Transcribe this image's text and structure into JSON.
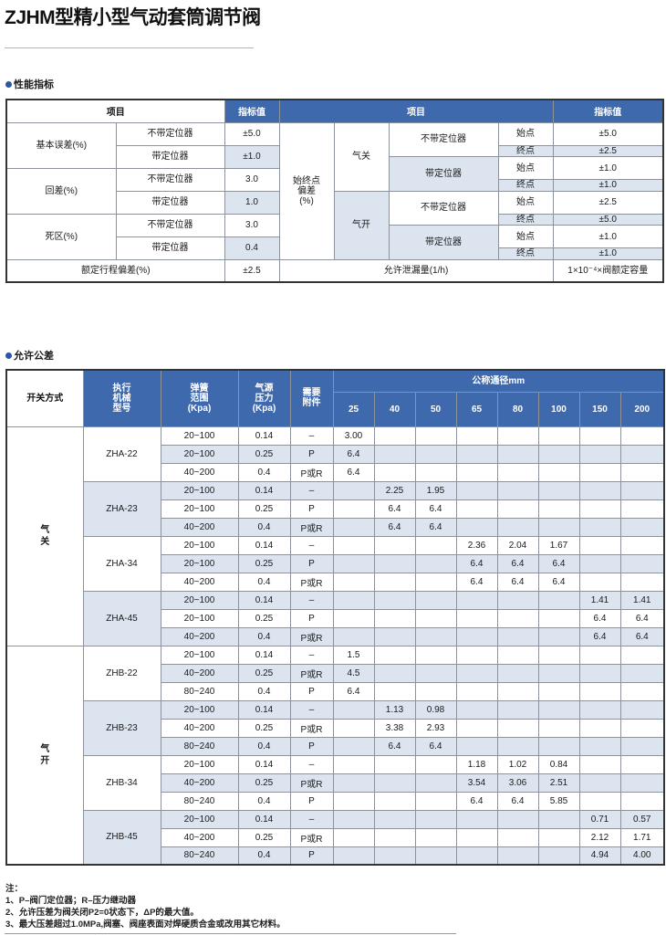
{
  "title": "ZJHM型精小型气动套筒调节阀",
  "section1": {
    "heading": "性能指标",
    "header": {
      "item_left": "项目",
      "value_left": "指标值",
      "item_right": "项目",
      "value_right": "指标值"
    },
    "left_rows": [
      {
        "label": "基本误差(%)",
        "sub": [
          {
            "name": "不带定位器",
            "value": "±5.0"
          },
          {
            "name": "带定位器",
            "value": "±1.0"
          }
        ]
      },
      {
        "label": "回差(%)",
        "sub": [
          {
            "name": "不带定位器",
            "value": "3.0"
          },
          {
            "name": "带定位器",
            "value": "1.0"
          }
        ]
      },
      {
        "label": "死区(%)",
        "sub": [
          {
            "name": "不带定位器",
            "value": "3.0"
          },
          {
            "name": "带定位器",
            "value": "0.4"
          }
        ]
      }
    ],
    "right_label": "始终点\n偏差\n(%)",
    "right_groups": [
      {
        "mode": "气关",
        "sub": [
          {
            "name": "不带定位器",
            "start_label": "始点",
            "start": "±5.0",
            "end_label": "终点",
            "end": "±2.5"
          },
          {
            "name": "带定位器",
            "start_label": "始点",
            "start": "±1.0",
            "end_label": "终点",
            "end": "±1.0"
          }
        ]
      },
      {
        "mode": "气开",
        "sub": [
          {
            "name": "不带定位器",
            "start_label": "始点",
            "start": "±2.5",
            "end_label": "终点",
            "end": "±5.0"
          },
          {
            "name": "带定位器",
            "start_label": "始点",
            "start": "±1.0",
            "end_label": "终点",
            "end": "±1.0"
          }
        ]
      }
    ],
    "footer": {
      "left_label": "额定行程偏差(%)",
      "left_value": "±2.5",
      "right_label": "允许泄漏量(1/h)",
      "right_value": "1×10⁻⁴×阀额定容量"
    }
  },
  "section2": {
    "heading": "允许公差",
    "header": {
      "mode": "开关方式",
      "model": "执行\n机械\n型号",
      "spring": "弹簧\n范围\n(Kpa)",
      "air": "气源\n压力\n(Kpa)",
      "accessory": "需要\n附件",
      "dn_title": "公称通径mm",
      "dn": [
        "25",
        "40",
        "50",
        "65",
        "80",
        "100",
        "150",
        "200"
      ]
    },
    "groups": [
      {
        "mode": "气\n关",
        "models": [
          {
            "model": "ZHA-22",
            "rows": [
              [
                "20~100",
                "0.14",
                "–",
                "3.00",
                "",
                "",
                "",
                "",
                "",
                "",
                ""
              ],
              [
                "20~100",
                "0.25",
                "P",
                "6.4",
                "",
                "",
                "",
                "",
                "",
                "",
                ""
              ],
              [
                "40~200",
                "0.4",
                "P或R",
                "6.4",
                "",
                "",
                "",
                "",
                "",
                "",
                ""
              ]
            ]
          },
          {
            "model": "ZHA-23",
            "rows": [
              [
                "20~100",
                "0.14",
                "–",
                "",
                "2.25",
                "1.95",
                "",
                "",
                "",
                "",
                ""
              ],
              [
                "20~100",
                "0.25",
                "P",
                "",
                "6.4",
                "6.4",
                "",
                "",
                "",
                "",
                ""
              ],
              [
                "40~200",
                "0.4",
                "P或R",
                "",
                "6.4",
                "6.4",
                "",
                "",
                "",
                "",
                ""
              ]
            ]
          },
          {
            "model": "ZHA-34",
            "rows": [
              [
                "20~100",
                "0.14",
                "–",
                "",
                "",
                "",
                "2.36",
                "2.04",
                "1.67",
                "",
                ""
              ],
              [
                "20~100",
                "0.25",
                "P",
                "",
                "",
                "",
                "6.4",
                "6.4",
                "6.4",
                "",
                ""
              ],
              [
                "40~200",
                "0.4",
                "P或R",
                "",
                "",
                "",
                "6.4",
                "6.4",
                "6.4",
                "",
                ""
              ]
            ]
          },
          {
            "model": "ZHA-45",
            "rows": [
              [
                "20~100",
                "0.14",
                "–",
                "",
                "",
                "",
                "",
                "",
                "",
                "1.41",
                "1.41"
              ],
              [
                "20~100",
                "0.25",
                "P",
                "",
                "",
                "",
                "",
                "",
                "",
                "6.4",
                "6.4"
              ],
              [
                "40~200",
                "0.4",
                "P或R",
                "",
                "",
                "",
                "",
                "",
                "",
                "6.4",
                "6.4"
              ]
            ]
          }
        ]
      },
      {
        "mode": "气\n开",
        "models": [
          {
            "model": "ZHB-22",
            "rows": [
              [
                "20~100",
                "0.14",
                "–",
                "1.5",
                "",
                "",
                "",
                "",
                "",
                "",
                ""
              ],
              [
                "40~200",
                "0.25",
                "P或R",
                "4.5",
                "",
                "",
                "",
                "",
                "",
                "",
                ""
              ],
              [
                "80~240",
                "0.4",
                "P",
                "6.4",
                "",
                "",
                "",
                "",
                "",
                "",
                ""
              ]
            ]
          },
          {
            "model": "ZHB-23",
            "rows": [
              [
                "20~100",
                "0.14",
                "–",
                "",
                "1.13",
                "0.98",
                "",
                "",
                "",
                "",
                ""
              ],
              [
                "40~200",
                "0.25",
                "P或R",
                "",
                "3.38",
                "2.93",
                "",
                "",
                "",
                "",
                ""
              ],
              [
                "80~240",
                "0.4",
                "P",
                "",
                "6.4",
                "6.4",
                "",
                "",
                "",
                "",
                ""
              ]
            ]
          },
          {
            "model": "ZHB-34",
            "rows": [
              [
                "20~100",
                "0.14",
                "–",
                "",
                "",
                "",
                "1.18",
                "1.02",
                "0.84",
                "",
                ""
              ],
              [
                "40~200",
                "0.25",
                "P或R",
                "",
                "",
                "",
                "3.54",
                "3.06",
                "2.51",
                "",
                ""
              ],
              [
                "80~240",
                "0.4",
                "P",
                "",
                "",
                "",
                "6.4",
                "6.4",
                "5.85",
                "",
                ""
              ]
            ]
          },
          {
            "model": "ZHB-45",
            "rows": [
              [
                "20~100",
                "0.14",
                "–",
                "",
                "",
                "",
                "",
                "",
                "",
                "0.71",
                "0.57"
              ],
              [
                "40~200",
                "0.25",
                "P或R",
                "",
                "",
                "",
                "",
                "",
                "",
                "2.12",
                "1.71"
              ],
              [
                "80~240",
                "0.4",
                "P",
                "",
                "",
                "",
                "",
                "",
                "",
                "4.94",
                "4.00"
              ]
            ]
          }
        ]
      }
    ]
  },
  "notes": {
    "heading": "注：",
    "items": [
      "1、P–阀门定位器；R–压力继动器",
      "2、允许压差为阀关闭P2=0状态下，ΔP的最大值。",
      "3、最大压差超过1.0MPa,阀塞、阀座表面对焊硬质合金或改用其它材料。"
    ]
  },
  "colors": {
    "header_blue": "#3f69ad",
    "row_shade": "#dce5ef",
    "bullet": "#2c56a0"
  }
}
